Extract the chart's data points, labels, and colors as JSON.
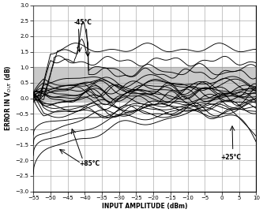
{
  "xlabel": "INPUT AMPLITUDE (dBm)",
  "ylabel": "ERROR IN V$_{OUT}$ (dB)",
  "xlim": [
    -55,
    10
  ],
  "ylim": [
    -3.0,
    3.0
  ],
  "xticks": [
    -55,
    -50,
    -45,
    -40,
    -35,
    -30,
    -25,
    -20,
    -15,
    -10,
    -5,
    0,
    5,
    10
  ],
  "yticks": [
    -3.0,
    -2.5,
    -2.0,
    -1.5,
    -1.0,
    -0.5,
    0.0,
    0.5,
    1.0,
    1.5,
    2.0,
    2.5,
    3.0
  ],
  "shaded_ymin": -0.1,
  "shaded_ymax": 1.0,
  "shaded_color": "#c0c0c0",
  "bg_color": "#ffffff",
  "annotation_neg45": "-45°C",
  "annotation_pos85": "+85°C",
  "annotation_pos25": "+25°C",
  "lw": 0.65,
  "grid_color": "#999999",
  "grid_lw": 0.4
}
